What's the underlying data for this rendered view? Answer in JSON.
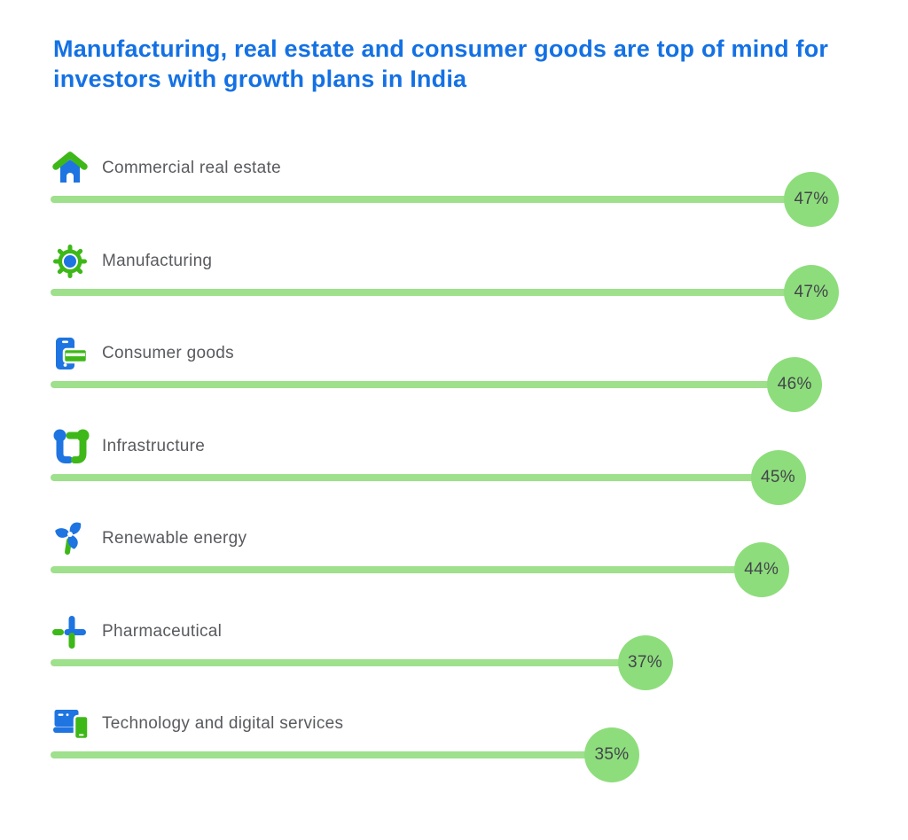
{
  "header": {
    "title_lines": [
      "Manufacturing, real estate and consumer goods are top of mind for",
      "investors with growth plans in India"
    ]
  },
  "colors": {
    "title_blue": "#1471e4",
    "icon_blue": "#1e74e0",
    "icon_green": "#3eb818",
    "bar_green": "#9ee08b",
    "bubble_green": "#8edd7c",
    "label_gray": "#595a5e",
    "value_gray": "#42464b"
  },
  "chart_data": {
    "type": "bar",
    "title": "Manufacturing, real estate and consumer goods are top of mind for investors with growth plans in India",
    "orientation": "horizontal",
    "unit": "%",
    "xlim": [
      0,
      50
    ],
    "categories": [
      "Commercial real estate",
      "Manufacturing",
      "Consumer goods",
      "Infrastructure",
      "Renewable energy",
      "Pharmaceutical",
      "Technology and digital services"
    ],
    "values": [
      47,
      47,
      46,
      45,
      44,
      37,
      35
    ],
    "items": [
      {
        "label": "Commercial real estate",
        "icon": "house-icon",
        "value": 47,
        "value_label": "47%"
      },
      {
        "label": "Manufacturing",
        "icon": "gear-icon",
        "value": 47,
        "value_label": "47%"
      },
      {
        "label": "Consumer goods",
        "icon": "phone-card-icon",
        "value": 46,
        "value_label": "46%"
      },
      {
        "label": "Infrastructure",
        "icon": "connected-nodes-icon",
        "value": 45,
        "value_label": "45%"
      },
      {
        "label": "Renewable energy",
        "icon": "pinwheel-icon",
        "value": 44,
        "value_label": "44%"
      },
      {
        "label": "Pharmaceutical",
        "icon": "medical-cross-icon",
        "value": 37,
        "value_label": "37%"
      },
      {
        "label": "Technology and digital services",
        "icon": "devices-icon",
        "value": 35,
        "value_label": "35%"
      }
    ]
  }
}
